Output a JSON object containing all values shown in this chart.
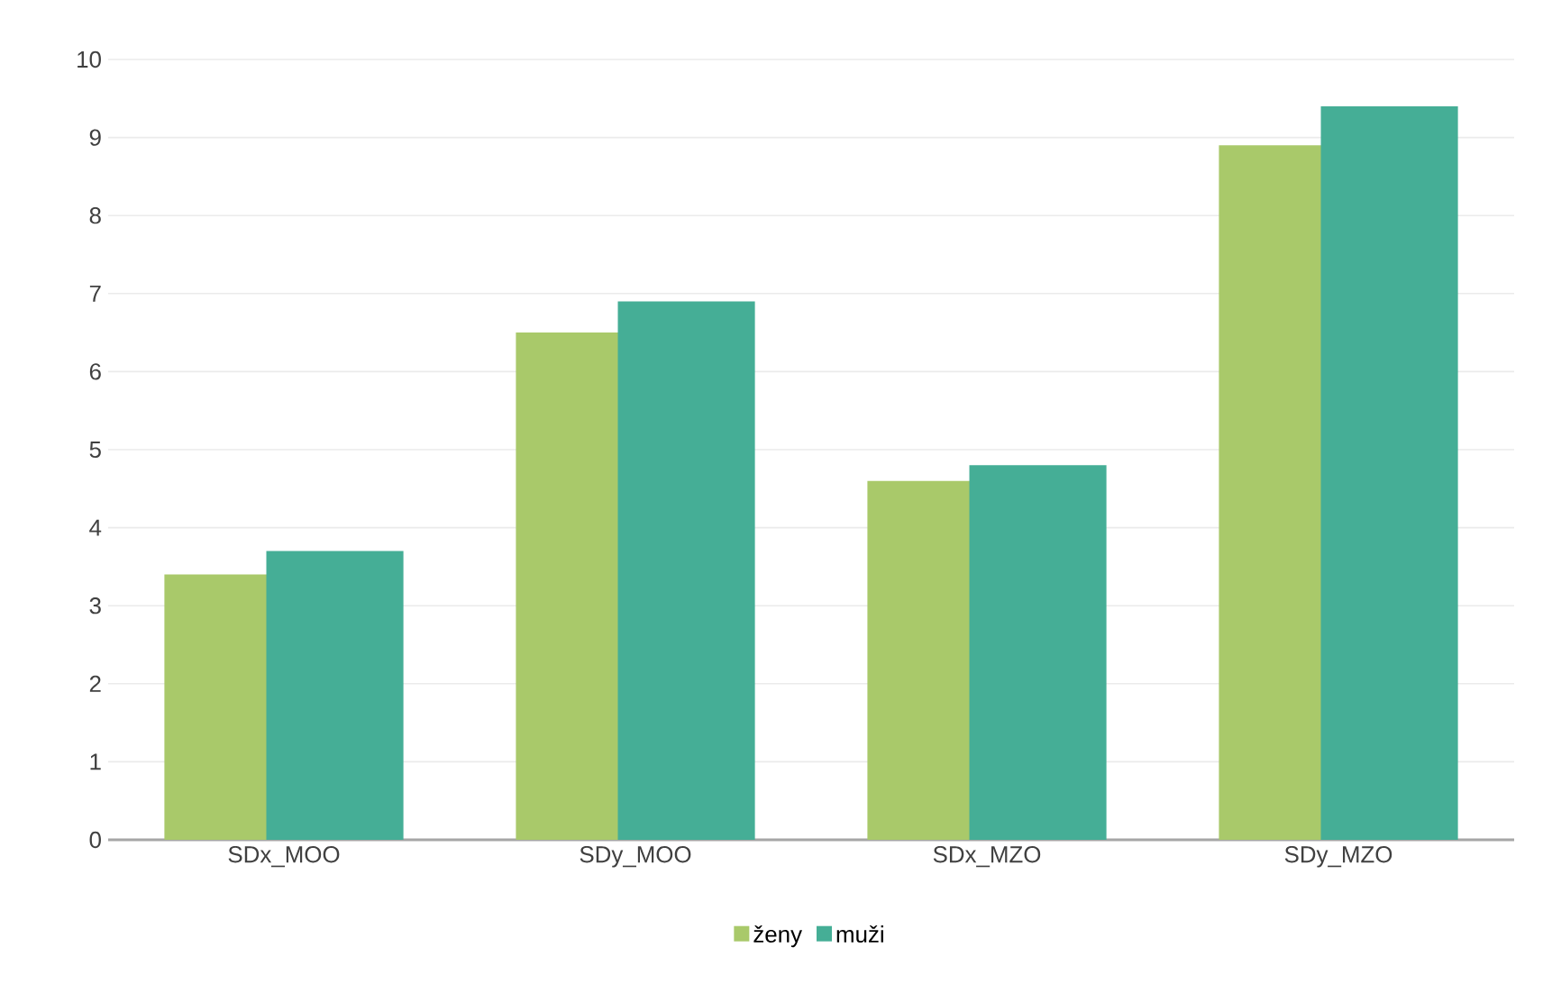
{
  "chart_data": {
    "type": "bar",
    "categories": [
      "SDx_MOO",
      "SDy_MOO",
      "SDx_MZO",
      "SDy_MZO"
    ],
    "series": [
      {
        "name": "ženy",
        "color": "#a9c96a",
        "values": [
          3.4,
          6.5,
          4.6,
          8.9
        ]
      },
      {
        "name": "muži",
        "color": "#45ae96",
        "values": [
          3.7,
          6.9,
          4.8,
          9.4
        ]
      }
    ],
    "ylim": [
      0,
      10
    ],
    "yticks": [
      0,
      1,
      2,
      3,
      4,
      5,
      6,
      7,
      8,
      9,
      10
    ],
    "grid": "y",
    "legend": "bottom"
  }
}
